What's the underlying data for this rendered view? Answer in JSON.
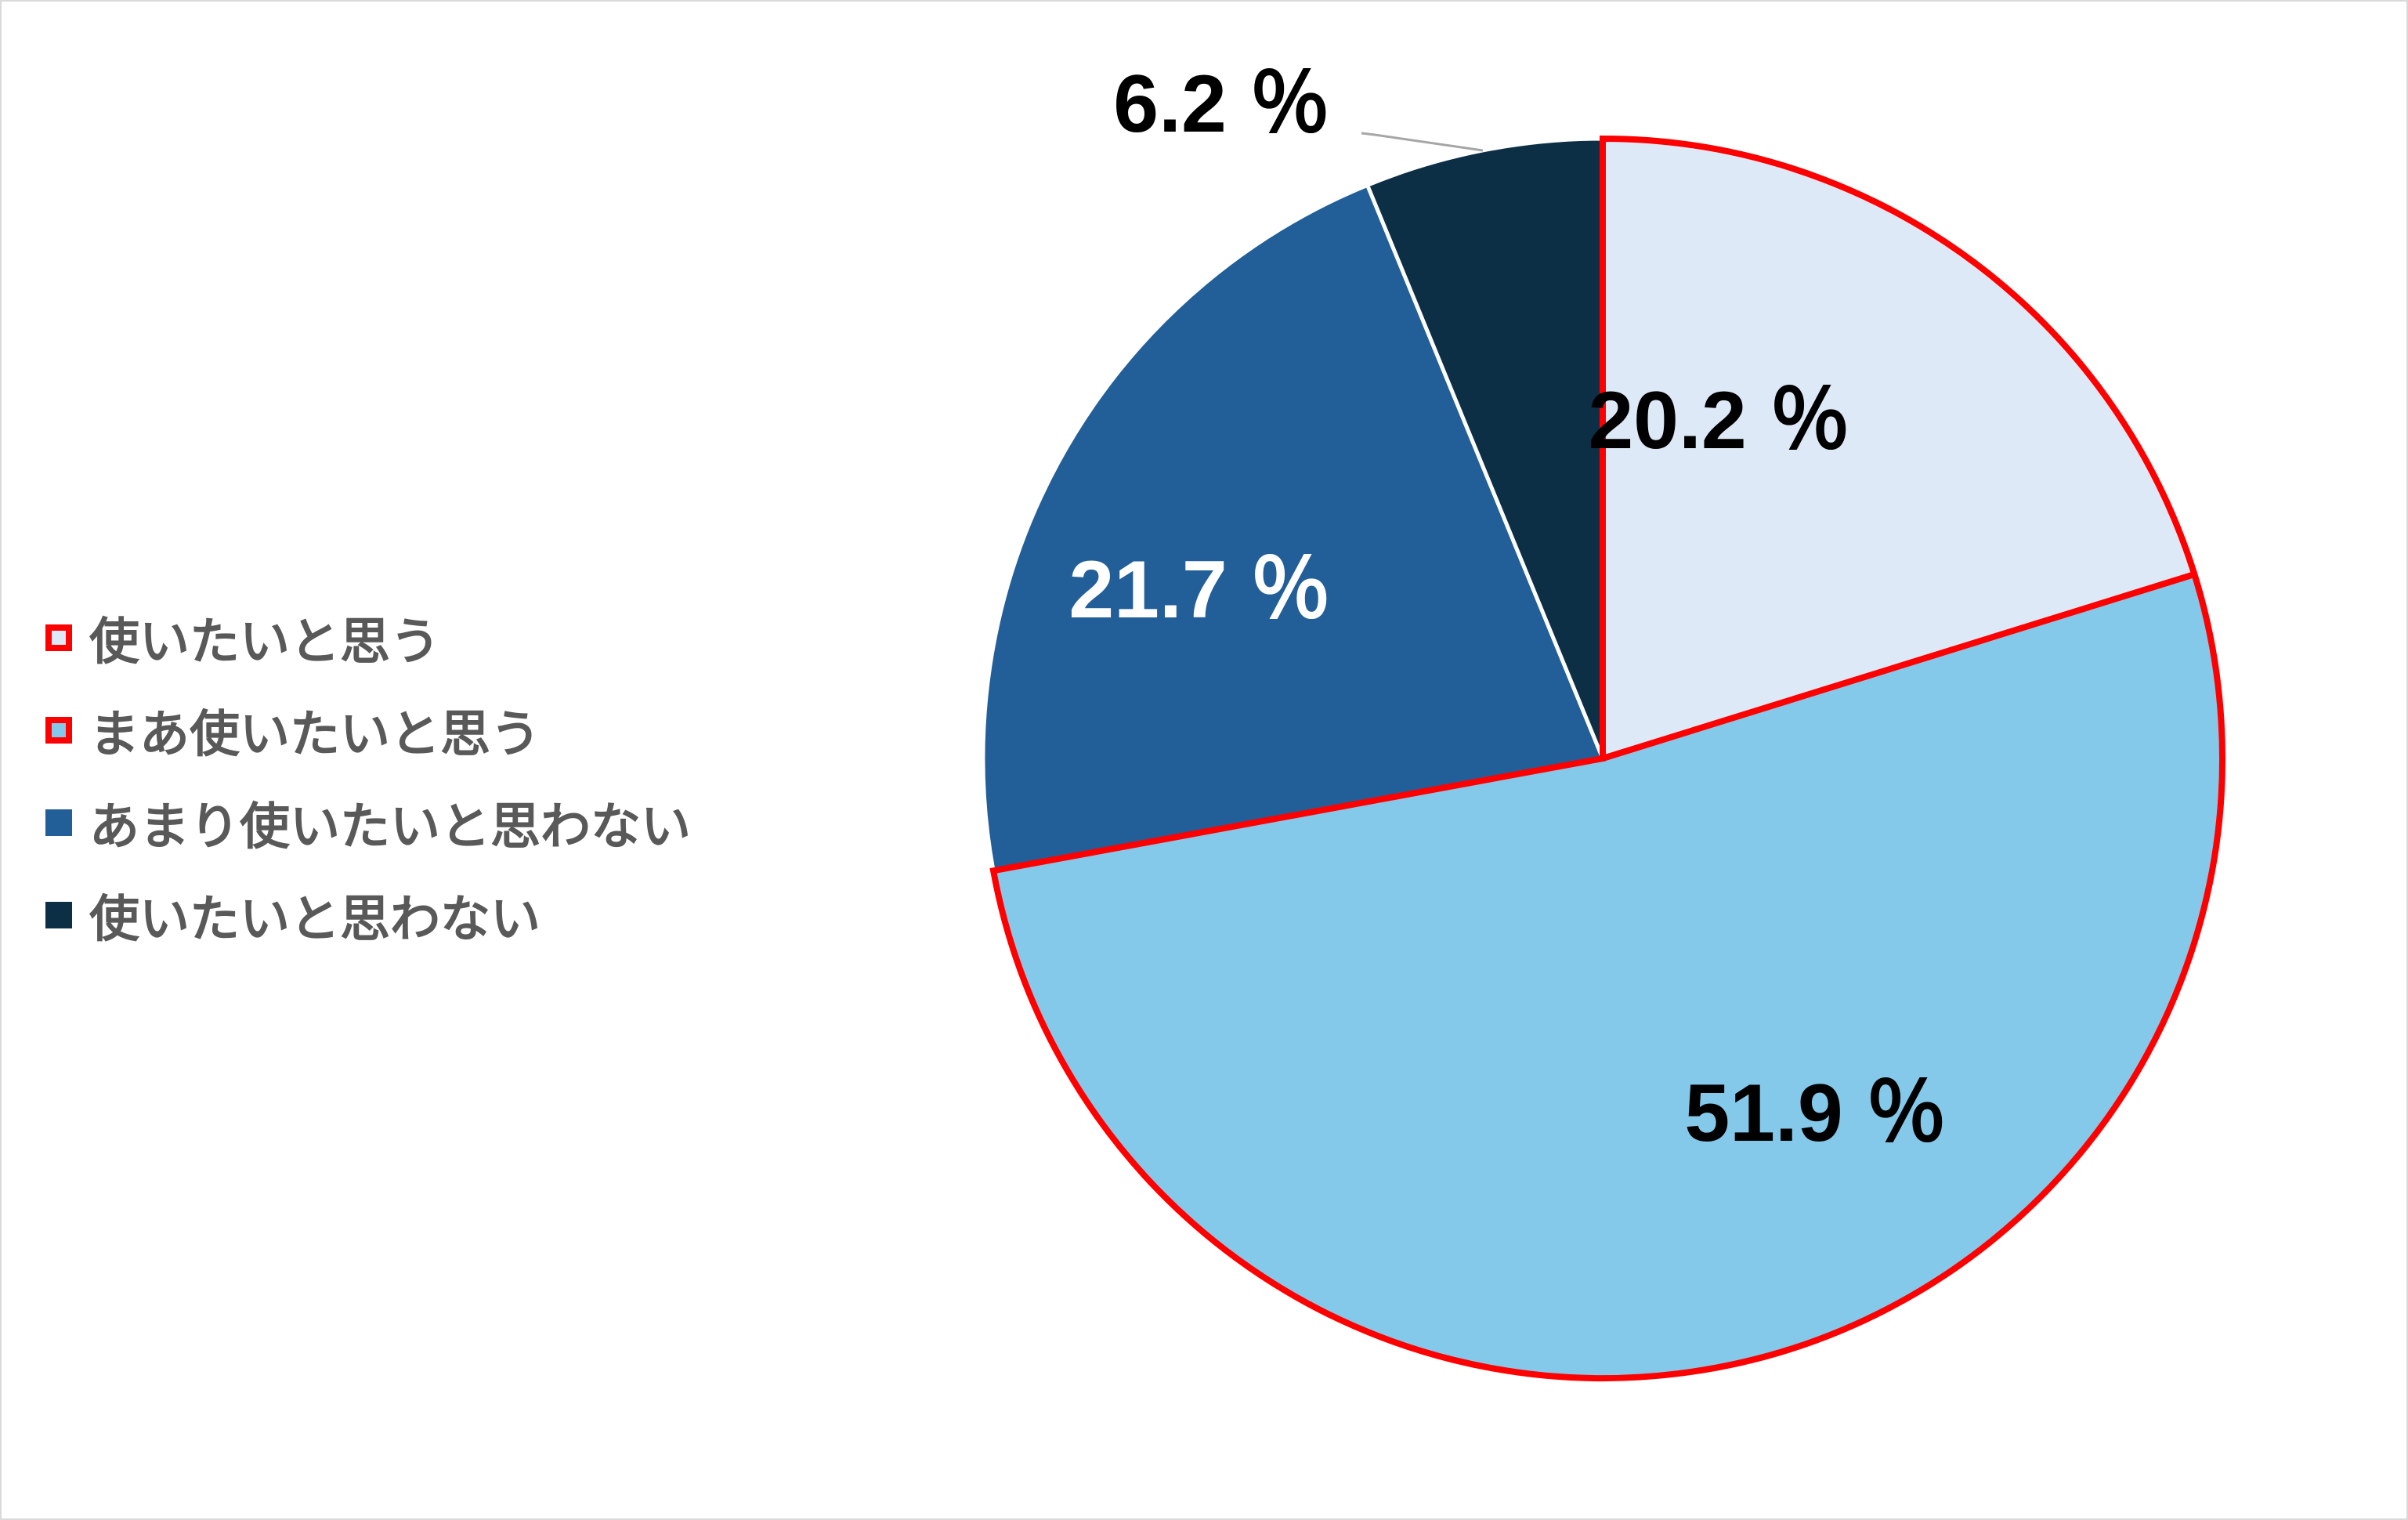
{
  "chart_data": {
    "type": "pie",
    "start_angle_deg": 0,
    "direction": "clockwise",
    "slices": [
      {
        "name": "使いたいと思う",
        "value": 20.2,
        "label": "20.2 ％",
        "color": "#dde9f6",
        "label_color": "#000000",
        "highlighted": true
      },
      {
        "name": "まあ使いたいと思う",
        "value": 51.9,
        "label": "51.9 ％",
        "color": "#84c8ea",
        "label_color": "#000000",
        "highlighted": true
      },
      {
        "name": "あまり使いたいと思わない",
        "value": 21.7,
        "label": "21.7 ％",
        "color": "#225e98",
        "label_color": "#ffffff",
        "highlighted": false
      },
      {
        "name": "使いたいと思わない",
        "value": 6.2,
        "label": "6.2 ％",
        "color": "#0d2f45",
        "label_color": "#000000",
        "highlighted": false
      }
    ],
    "highlight_color": "#ff0000",
    "legend_position": "left"
  }
}
